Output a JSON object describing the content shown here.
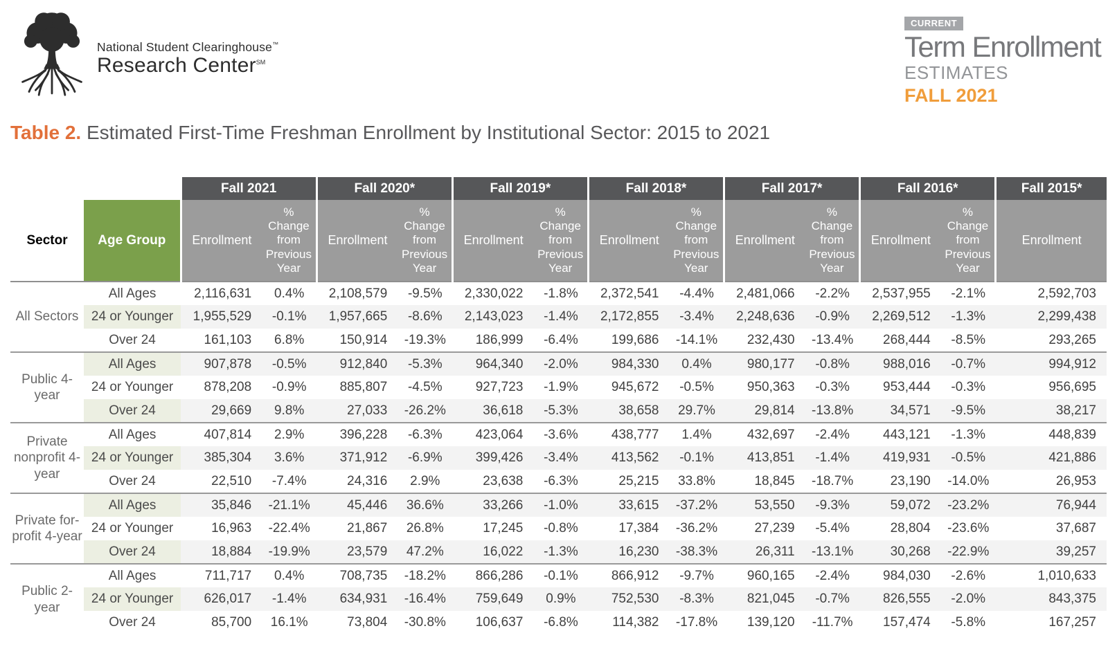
{
  "logo": {
    "line1": "National Student Clearinghouse",
    "line1_mark": "™",
    "line2": "Research Center",
    "line2_mark": "SM"
  },
  "brand": {
    "badge": "CURRENT",
    "title": "Term Enrollment",
    "subtitle": "ESTIMATES",
    "term": "FALL 2021"
  },
  "title": {
    "prefix": "Table 2.",
    "text": " Estimated First-Time Freshman Enrollment by Institutional Sector: 2015 to 2021"
  },
  "colors": {
    "accent_orange": "#e2703a",
    "fall_orange": "#f09d3b",
    "header_dark": "#565759",
    "header_gray": "#9c9c9c",
    "age_green": "#7ba04b",
    "shade_green": "#ecefe2",
    "shade_gray": "#f3f3f3",
    "divider_gray": "#8f8f8f",
    "text_dark": "#414141"
  },
  "table": {
    "sector_header": "Sector",
    "age_group_header": "Age Group",
    "enrollment_label": "Enrollment",
    "pct_change_label": "%\nChange\nfrom\nPrevious\nYear",
    "year_columns": [
      {
        "label": "Fall 2021",
        "has_pct": true
      },
      {
        "label": "Fall 2020*",
        "has_pct": true
      },
      {
        "label": "Fall 2019*",
        "has_pct": true
      },
      {
        "label": "Fall 2018*",
        "has_pct": true
      },
      {
        "label": "Fall 2017*",
        "has_pct": true
      },
      {
        "label": "Fall 2016*",
        "has_pct": true
      },
      {
        "label": "Fall 2015*",
        "has_pct": false
      }
    ],
    "groups": [
      {
        "sector": "All Sectors",
        "rows": [
          {
            "age": "All Ages",
            "values": [
              "2,116,631",
              "0.4%",
              "2,108,579",
              "-9.5%",
              "2,330,022",
              "-1.8%",
              "2,372,541",
              "-4.4%",
              "2,481,066",
              "-2.2%",
              "2,537,955",
              "-2.1%",
              "2,592,703"
            ]
          },
          {
            "age": "24 or Younger",
            "values": [
              "1,955,529",
              "-0.1%",
              "1,957,665",
              "-8.6%",
              "2,143,023",
              "-1.4%",
              "2,172,855",
              "-3.4%",
              "2,248,636",
              "-0.9%",
              "2,269,512",
              "-1.3%",
              "2,299,438"
            ]
          },
          {
            "age": "Over 24",
            "values": [
              "161,103",
              "6.8%",
              "150,914",
              "-19.3%",
              "186,999",
              "-6.4%",
              "199,686",
              "-14.1%",
              "232,430",
              "-13.4%",
              "268,444",
              "-8.5%",
              "293,265"
            ]
          }
        ]
      },
      {
        "sector": "Public 4-year",
        "rows": [
          {
            "age": "All Ages",
            "values": [
              "907,878",
              "-0.5%",
              "912,840",
              "-5.3%",
              "964,340",
              "-2.0%",
              "984,330",
              "0.4%",
              "980,177",
              "-0.8%",
              "988,016",
              "-0.7%",
              "994,912"
            ]
          },
          {
            "age": "24 or Younger",
            "values": [
              "878,208",
              "-0.9%",
              "885,807",
              "-4.5%",
              "927,723",
              "-1.9%",
              "945,672",
              "-0.5%",
              "950,363",
              "-0.3%",
              "953,444",
              "-0.3%",
              "956,695"
            ]
          },
          {
            "age": "Over 24",
            "values": [
              "29,669",
              "9.8%",
              "27,033",
              "-26.2%",
              "36,618",
              "-5.3%",
              "38,658",
              "29.7%",
              "29,814",
              "-13.8%",
              "34,571",
              "-9.5%",
              "38,217"
            ]
          }
        ]
      },
      {
        "sector": "Private nonprofit 4-year",
        "rows": [
          {
            "age": "All Ages",
            "values": [
              "407,814",
              "2.9%",
              "396,228",
              "-6.3%",
              "423,064",
              "-3.6%",
              "438,777",
              "1.4%",
              "432,697",
              "-2.4%",
              "443,121",
              "-1.3%",
              "448,839"
            ]
          },
          {
            "age": "24 or Younger",
            "values": [
              "385,304",
              "3.6%",
              "371,912",
              "-6.9%",
              "399,426",
              "-3.4%",
              "413,562",
              "-0.1%",
              "413,851",
              "-1.4%",
              "419,931",
              "-0.5%",
              "421,886"
            ]
          },
          {
            "age": "Over 24",
            "values": [
              "22,510",
              "-7.4%",
              "24,316",
              "2.9%",
              "23,638",
              "-6.3%",
              "25,215",
              "33.8%",
              "18,845",
              "-18.7%",
              "23,190",
              "-14.0%",
              "26,953"
            ]
          }
        ]
      },
      {
        "sector": "Private for-profit 4-year",
        "rows": [
          {
            "age": "All Ages",
            "values": [
              "35,846",
              "-21.1%",
              "45,446",
              "36.6%",
              "33,266",
              "-1.0%",
              "33,615",
              "-37.2%",
              "53,550",
              "-9.3%",
              "59,072",
              "-23.2%",
              "76,944"
            ]
          },
          {
            "age": "24 or Younger",
            "values": [
              "16,963",
              "-22.4%",
              "21,867",
              "26.8%",
              "17,245",
              "-0.8%",
              "17,384",
              "-36.2%",
              "27,239",
              "-5.4%",
              "28,804",
              "-23.6%",
              "37,687"
            ]
          },
          {
            "age": "Over 24",
            "values": [
              "18,884",
              "-19.9%",
              "23,579",
              "47.2%",
              "16,022",
              "-1.3%",
              "16,230",
              "-38.3%",
              "26,311",
              "-13.1%",
              "30,268",
              "-22.9%",
              "39,257"
            ]
          }
        ]
      },
      {
        "sector": "Public 2-year",
        "rows": [
          {
            "age": "All Ages",
            "values": [
              "711,717",
              "0.4%",
              "708,735",
              "-18.2%",
              "866,286",
              "-0.1%",
              "866,912",
              "-9.7%",
              "960,165",
              "-2.4%",
              "984,030",
              "-2.6%",
              "1,010,633"
            ]
          },
          {
            "age": "24 or Younger",
            "values": [
              "626,017",
              "-1.4%",
              "634,931",
              "-16.4%",
              "759,649",
              "0.9%",
              "752,530",
              "-8.3%",
              "821,045",
              "-0.7%",
              "826,555",
              "-2.0%",
              "843,375"
            ]
          },
          {
            "age": "Over 24",
            "values": [
              "85,700",
              "16.1%",
              "73,804",
              "-30.8%",
              "106,637",
              "-6.8%",
              "114,382",
              "-17.8%",
              "139,120",
              "-11.7%",
              "157,474",
              "-5.8%",
              "167,257"
            ]
          }
        ]
      }
    ]
  }
}
